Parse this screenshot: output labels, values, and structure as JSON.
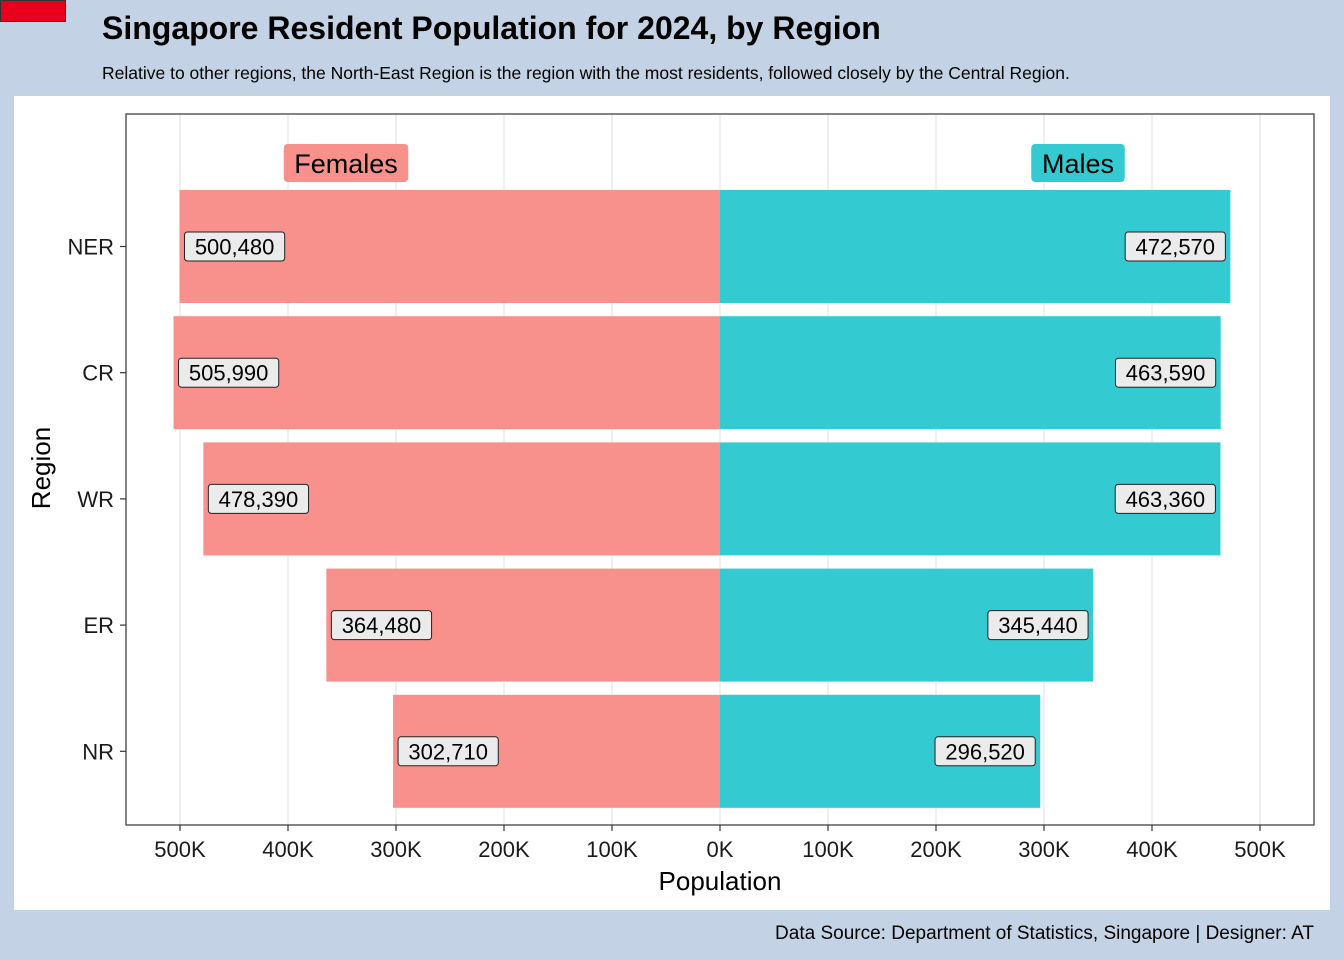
{
  "header": {
    "title": "Singapore Resident Population for 2024, by Region",
    "subtitle": "Relative to other regions, the North-East Region is the region with the most residents, followed closely by the Central Region."
  },
  "footer": {
    "caption": "Data Source: Department of Statistics, Singapore | Designer: AT"
  },
  "colors": {
    "background": "#c3d3e5",
    "panel": "#ffffff",
    "females": "#f8908b",
    "males": "#33cbd1",
    "flag": "#e8001c",
    "label_box": "#ebebeb"
  },
  "chart_data": {
    "type": "bar",
    "orientation": "horizontal-diverging",
    "categories": [
      "NER",
      "CR",
      "WR",
      "ER",
      "NR"
    ],
    "series": [
      {
        "name": "Females",
        "values": [
          500480,
          505990,
          478390,
          364480,
          302710
        ]
      },
      {
        "name": "Males",
        "values": [
          472570,
          463590,
          463360,
          345440,
          296520
        ]
      }
    ],
    "data_labels": {
      "Females": [
        "500,480",
        "505,990",
        "478,390",
        "364,480",
        "302,710"
      ],
      "Males": [
        "472,570",
        "463,590",
        "463,360",
        "345,440",
        "296,520"
      ]
    },
    "xlabel": "Population",
    "ylabel": "Region",
    "xlim": [
      -550000,
      550000
    ],
    "x_ticks": [
      -500000,
      -400000,
      -300000,
      -200000,
      -100000,
      0,
      100000,
      200000,
      300000,
      400000,
      500000
    ],
    "x_tick_labels": [
      "500K",
      "400K",
      "300K",
      "200K",
      "100K",
      "0K",
      "100K",
      "200K",
      "300K",
      "400K",
      "500K"
    ],
    "grid": "vertical-major",
    "legend": "series names boxed above bars, Females top-left, Males top-right"
  }
}
